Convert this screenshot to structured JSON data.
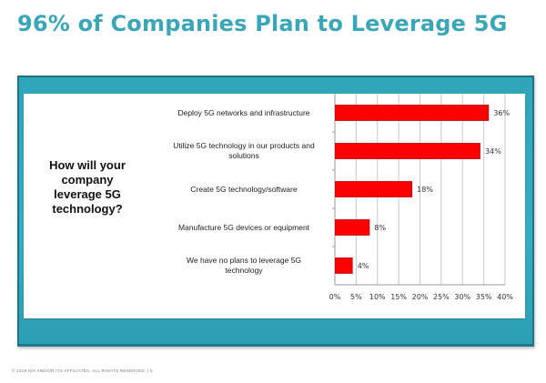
{
  "slide": {
    "title": "96% of Companies Plan to Leverage 5G",
    "footer": "© 2019 IDA AND/OR ITS AFFILIATES. ALL RIGHTS RESERVED.   |   5"
  },
  "colors": {
    "title": "#3aa6b8",
    "frame": "#2fa5ba",
    "bar": "#ff0000",
    "bar_edge": "#c00000",
    "grid": "#c8c8c8"
  },
  "chart_data": {
    "type": "bar",
    "orientation": "horizontal",
    "title": "How will your company leverage 5G technology?",
    "title_lines": [
      "How will your company",
      "leverage 5G",
      "technology?"
    ],
    "categories": [
      "Deploy 5G networks and infrastructure",
      "Utilize 5G technology in our products and solutions",
      "Create 5G technology/software",
      "Manufacture 5G devices or equipment",
      "We have no plans to leverage 5G technology"
    ],
    "category_lines": [
      [
        "Deploy 5G networks and infrastructure"
      ],
      [
        "Utilize 5G technology in our products and",
        "solutions"
      ],
      [
        "Create 5G technology/software"
      ],
      [
        "Manufacture 5G devices or equipment"
      ],
      [
        "We have no plans to leverage 5G",
        "technology"
      ]
    ],
    "values": [
      36,
      34,
      18,
      8,
      4
    ],
    "data_labels": [
      "36%",
      "34%",
      "18%",
      "8%",
      "4%"
    ],
    "xlim": [
      0,
      40
    ],
    "xticks": [
      0,
      5,
      10,
      15,
      20,
      25,
      30,
      35,
      40
    ],
    "xtick_labels": [
      "0%",
      "5%",
      "10%",
      "15%",
      "20%",
      "25%",
      "30%",
      "35%",
      "40%"
    ],
    "xlabel": "",
    "ylabel": "",
    "grid": true,
    "legend": "none"
  }
}
